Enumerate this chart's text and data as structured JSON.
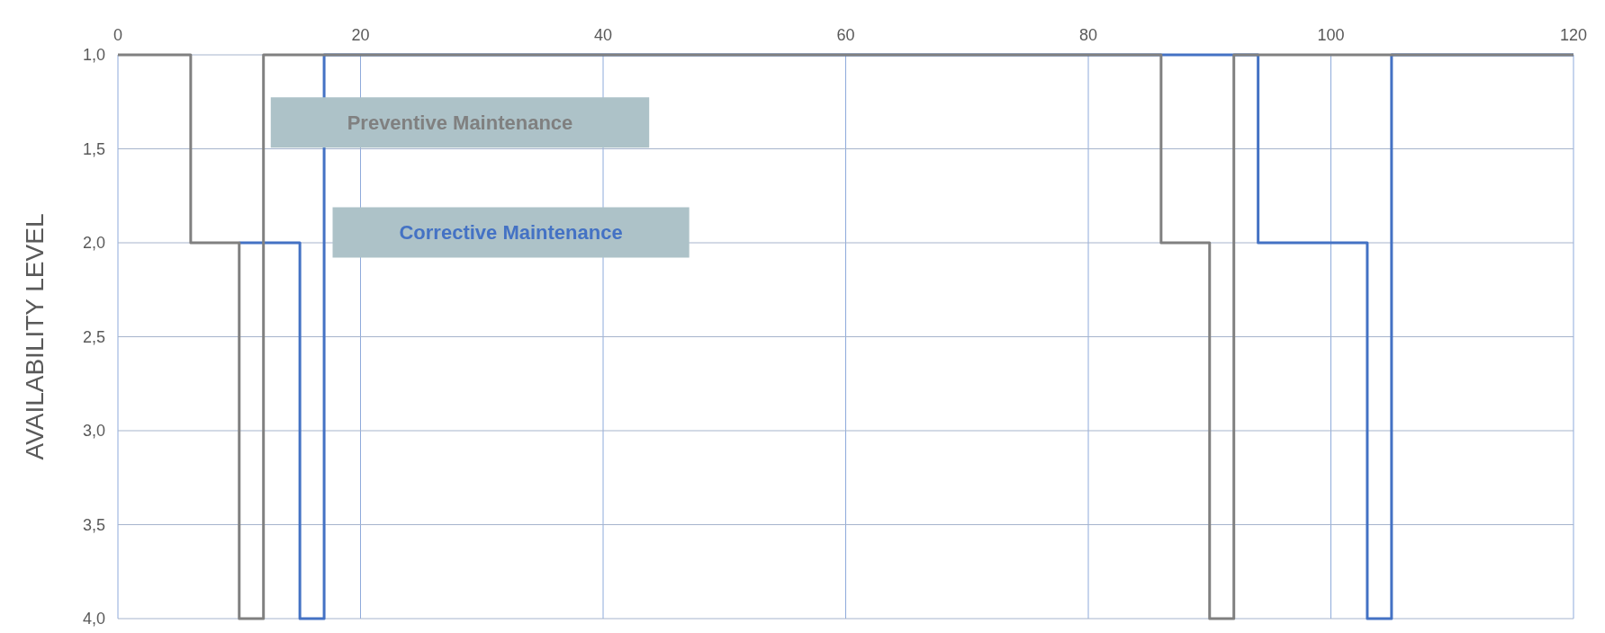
{
  "chart_data": {
    "type": "step",
    "ylabel": "AVAILABILITY LEVEL",
    "xlim": [
      0,
      120
    ],
    "xticks": [
      0,
      20,
      40,
      60,
      80,
      100,
      120
    ],
    "ylim": [
      4,
      1
    ],
    "yticks": [
      {
        "value": 1,
        "label": "1,0"
      },
      {
        "value": 1.5,
        "label": "1,5"
      },
      {
        "value": 2,
        "label": "2,0"
      },
      {
        "value": 2.5,
        "label": "2,5"
      },
      {
        "value": 3,
        "label": "3,0"
      },
      {
        "value": 3.5,
        "label": "3,5"
      },
      {
        "value": 4,
        "label": "4,0"
      }
    ],
    "grid": true,
    "series": [
      {
        "name": "Corrective Maintenance",
        "color": "#4472c4",
        "x": [
          10,
          15,
          17,
          94,
          103,
          105,
          120
        ],
        "values": [
          2,
          4,
          1,
          2,
          4,
          1,
          1
        ]
      },
      {
        "name": "Preventive Maintenance",
        "color": "#808080",
        "x": [
          0,
          6,
          10,
          12,
          86,
          90,
          92,
          120
        ],
        "values": [
          1,
          2,
          4,
          1,
          2,
          4,
          1,
          1
        ]
      }
    ]
  }
}
